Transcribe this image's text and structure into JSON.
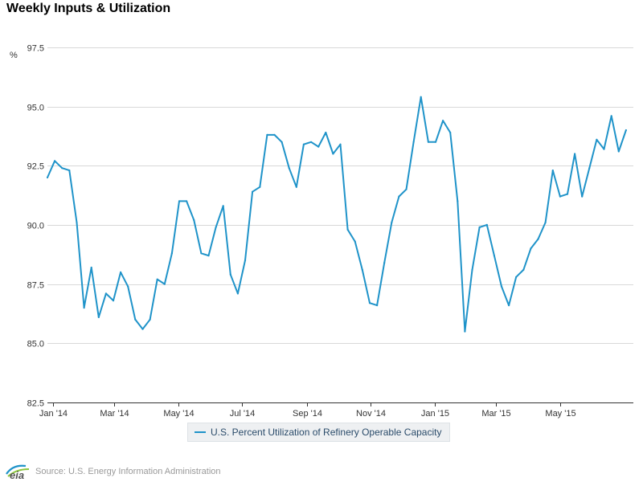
{
  "title": "Weekly Inputs & Utilization",
  "source": "Source: U.S. Energy Information Administration",
  "logo_text": "eia",
  "chart_data": {
    "type": "line",
    "title": "Weekly Inputs & Utilization",
    "ylabel": "%",
    "xlabel": "",
    "ylim": [
      82.5,
      98.75
    ],
    "xlim": [
      "2013-12-27",
      "2015-07-10"
    ],
    "y_ticks": [
      82.5,
      85.0,
      87.5,
      90.0,
      92.5,
      95.0,
      97.5
    ],
    "y_tick_labels": [
      "82.5",
      "85.0",
      "87.5",
      "90.0",
      "92.5",
      "95.0",
      "97.5"
    ],
    "x_ticks": [
      "2014-01-01",
      "2014-03-01",
      "2014-05-01",
      "2014-07-01",
      "2014-09-01",
      "2014-11-01",
      "2015-01-01",
      "2015-03-01",
      "2015-05-01"
    ],
    "x_tick_labels": [
      "Jan '14",
      "Mar '14",
      "May '14",
      "Jul '14",
      "Sep '14",
      "Nov '14",
      "Jan '15",
      "Mar '15",
      "May '15"
    ],
    "grid": "horizontal",
    "legend_position": "bottom",
    "colors": {
      "series": "#1f93c9",
      "grid": "#d8d8d8",
      "axis": "#333333"
    },
    "series": [
      {
        "name": "U.S. Percent Utilization of Refinery Operable Capacity",
        "x": [
          "2013-12-27",
          "2014-01-03",
          "2014-01-10",
          "2014-01-17",
          "2014-01-24",
          "2014-01-31",
          "2014-02-07",
          "2014-02-14",
          "2014-02-21",
          "2014-02-28",
          "2014-03-07",
          "2014-03-14",
          "2014-03-21",
          "2014-03-28",
          "2014-04-04",
          "2014-04-11",
          "2014-04-18",
          "2014-04-25",
          "2014-05-02",
          "2014-05-09",
          "2014-05-16",
          "2014-05-23",
          "2014-05-30",
          "2014-06-06",
          "2014-06-13",
          "2014-06-20",
          "2014-06-27",
          "2014-07-04",
          "2014-07-11",
          "2014-07-18",
          "2014-07-25",
          "2014-08-01",
          "2014-08-08",
          "2014-08-15",
          "2014-08-22",
          "2014-08-29",
          "2014-09-05",
          "2014-09-12",
          "2014-09-19",
          "2014-09-26",
          "2014-10-03",
          "2014-10-10",
          "2014-10-17",
          "2014-10-24",
          "2014-10-31",
          "2014-11-07",
          "2014-11-14",
          "2014-11-21",
          "2014-11-28",
          "2014-12-05",
          "2014-12-12",
          "2014-12-19",
          "2014-12-26",
          "2015-01-02",
          "2015-01-09",
          "2015-01-16",
          "2015-01-23",
          "2015-01-30",
          "2015-02-06",
          "2015-02-13",
          "2015-02-20",
          "2015-02-27",
          "2015-03-06",
          "2015-03-13",
          "2015-03-20",
          "2015-03-27",
          "2015-04-03",
          "2015-04-10",
          "2015-04-17",
          "2015-04-24",
          "2015-05-01",
          "2015-05-08",
          "2015-05-15",
          "2015-05-22",
          "2015-05-29",
          "2015-06-05",
          "2015-06-12",
          "2015-06-19",
          "2015-06-26",
          "2015-07-03"
        ],
        "values": [
          92.0,
          92.7,
          92.4,
          92.3,
          90.1,
          86.5,
          88.2,
          86.1,
          87.1,
          86.8,
          88.0,
          87.4,
          86.0,
          85.6,
          86.0,
          87.7,
          87.5,
          88.8,
          91.0,
          91.0,
          90.2,
          88.8,
          88.7,
          89.9,
          90.8,
          87.9,
          87.1,
          88.5,
          91.4,
          91.6,
          93.8,
          93.8,
          93.5,
          92.4,
          91.6,
          93.4,
          93.5,
          93.3,
          93.9,
          93.0,
          93.4,
          89.8,
          89.3,
          88.1,
          86.7,
          86.6,
          88.4,
          90.1,
          91.2,
          91.5,
          93.5,
          95.4,
          93.5,
          93.5,
          94.4,
          93.9,
          91.0,
          85.5,
          88.1,
          89.9,
          90.0,
          88.7,
          87.4,
          86.6,
          87.8,
          88.1,
          89.0,
          89.4,
          90.1,
          92.3,
          91.2,
          91.3,
          93.0,
          91.2,
          92.4,
          93.6,
          93.2,
          94.6,
          93.1,
          94.0
        ]
      }
    ]
  }
}
